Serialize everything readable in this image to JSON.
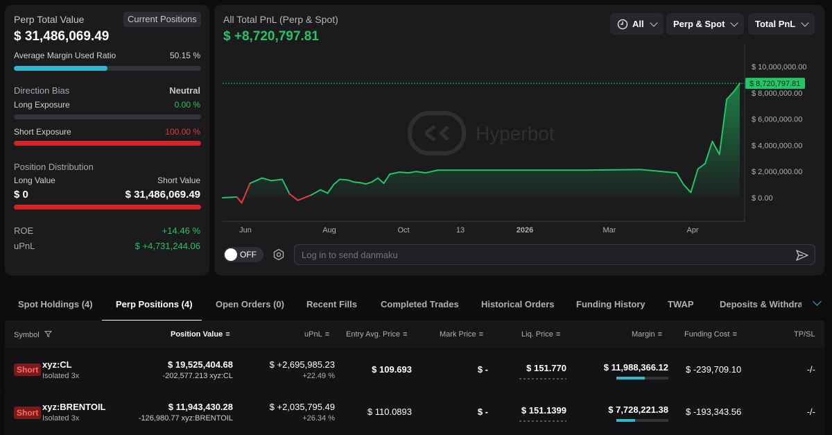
{
  "summary": {
    "perp_total_label": "Perp Total Value",
    "current_positions_btn": "Current Positions",
    "perp_total_value": "$ 31,486,069.49",
    "avg_margin_label": "Average Margin Used Ratio",
    "avg_margin_value": "50.15 %",
    "avg_margin_ratio": 0.5015,
    "direction_bias_label": "Direction Bias",
    "direction_bias_value": "Neutral",
    "long_exposure_label": "Long Exposure",
    "long_exposure_value": "0.00 %",
    "long_exposure_ratio": 0.0,
    "short_exposure_label": "Short Exposure",
    "short_exposure_value": "100.00 %",
    "short_exposure_ratio": 1.0,
    "position_dist_label": "Position Distribution",
    "long_value_label": "Long Value",
    "short_value_label": "Short Value",
    "long_value": "$ 0",
    "short_value": "$ 31,486,069.49",
    "roe_label": "ROE",
    "roe_value": "+14.46 %",
    "upnl_label": "uPnL",
    "upnl_value": "$ +4,731,244.06"
  },
  "pnl": {
    "title": "All Total PnL (Perp & Spot)",
    "value": "$ +8,720,797.81",
    "filters": {
      "range": "All",
      "scope": "Perp & Spot",
      "metric": "Total PnL"
    },
    "watermark": "Hyperbot",
    "current_tag": "$ 8,720,797.81"
  },
  "chart_data": {
    "type": "area",
    "x_ticks": [
      "Jun",
      "Aug",
      "Oct",
      "13",
      "2026",
      "Mar",
      "Apr"
    ],
    "y_ticks": [
      "$ 10,000,000.00",
      "$ 8,000,000.00",
      "$ 6,000,000.00",
      "$ 4,000,000.00",
      "$ 2,000,000.00",
      "$ 0.00"
    ],
    "ylim": [
      0,
      10000000
    ],
    "current_value": 8720797.81,
    "colors": {
      "positive": "#25c466",
      "negative": "#e33a3a"
    },
    "series": [
      {
        "t": [
          0,
          1.2,
          1.6,
          2.3,
          3.3,
          4.1,
          5.0,
          5.6,
          6.3,
          7.4,
          8.2,
          8.8,
          9.3,
          9.8,
          10.5,
          11.0,
          11.5,
          12.0,
          12.5,
          13.0,
          13.5,
          14.0,
          14.8,
          15.6,
          16.2,
          17.0,
          18.0,
          20.0,
          25.0,
          30.0,
          35.0,
          38.0,
          38.6,
          39.2,
          39.8,
          40.4,
          41.0,
          41.6,
          42.2,
          42.8,
          43.3
        ],
        "y": [
          0,
          50000,
          -400000,
          1100000,
          1500000,
          1300000,
          1400000,
          300000,
          -200000,
          200000,
          600000,
          350000,
          1000000,
          1400000,
          1350000,
          1200000,
          1150000,
          1050000,
          1200000,
          1500000,
          1100000,
          1800000,
          1950000,
          1900000,
          2000000,
          1900000,
          2100000,
          2100000,
          2100000,
          2100000,
          2150000,
          1900000,
          1000000,
          400000,
          2200000,
          2600000,
          4300000,
          3300000,
          7500000,
          8100000,
          8720797.81
        ]
      }
    ]
  },
  "controls": {
    "toggle_label": "OFF",
    "danmaku_placeholder": "Log in to send danmaku"
  },
  "tabs": [
    "Spot Holdings (4)",
    "Perp Positions (4)",
    "Open Orders (0)",
    "Recent Fills",
    "Completed Trades",
    "Historical Orders",
    "Funding History",
    "TWAP",
    "Deposits & Withdraw"
  ],
  "table": {
    "headers": [
      "Symbol",
      "Position Value",
      "uPnL",
      "Entry Avg. Price",
      "Mark Price",
      "Liq. Price",
      "Margin",
      "Funding Cost",
      "TP/SL"
    ],
    "rows": [
      {
        "side": "Short",
        "symbol": "xyz:CL",
        "leverage": "Isolated 3x",
        "position_value": "$ 19,525,404.68",
        "position_size": "-202,577.213 xyz:CL",
        "upnl": "$ +2,695,985.23",
        "upnl_pct": "+22.49 %",
        "entry": "$ 109.693",
        "mark": "$ -",
        "liq": "$ 151.770",
        "margin": "$ 11,988,366.12",
        "margin_ratio": 0.55,
        "funding": "$ -239,709.10",
        "tpsl": "-/-"
      },
      {
        "side": "Short",
        "symbol": "xyz:BRENTOIL",
        "leverage": "Isolated 3x",
        "position_value": "$ 11,943,430.28",
        "position_size": "-126,980.77 xyz:BRENTOIL",
        "upnl": "$ +2,035,795.49",
        "upnl_pct": "+26.34 %",
        "entry": "$ 110.0893",
        "mark": "$ -",
        "liq": "$ 151.1399",
        "margin": "$ 7,728,221.38",
        "margin_ratio": 0.36,
        "funding": "$ -193,343.56",
        "tpsl": "-/-"
      }
    ]
  }
}
